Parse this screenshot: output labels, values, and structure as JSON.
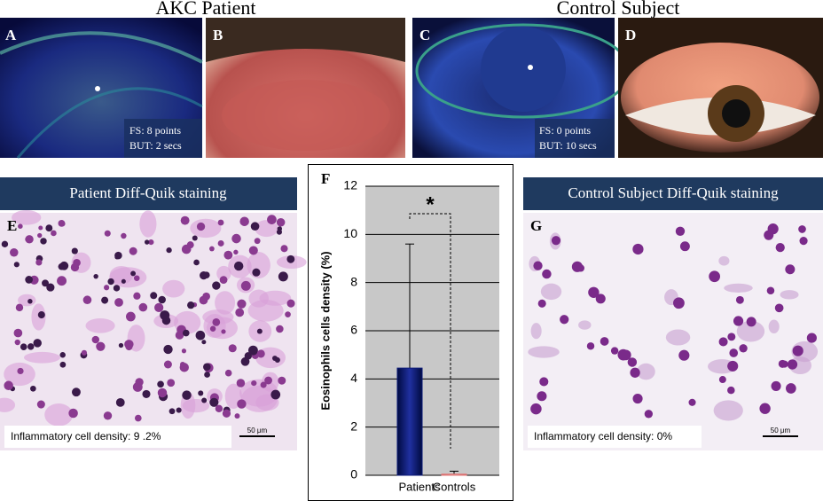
{
  "titles": {
    "patient": "AKC Patient",
    "control": "Control Subject"
  },
  "photos": [
    {
      "letter": "A",
      "lines": [
        "FS: 8 points",
        "BUT: 2 secs"
      ]
    },
    {
      "letter": "B"
    },
    {
      "letter": "C",
      "lines": [
        "FS: 0 points",
        "BUT: 10 secs"
      ]
    },
    {
      "letter": "D"
    }
  ],
  "smears": [
    {
      "header": "Patient Diff-Quik staining",
      "letter": "E",
      "caption": "Inflammatory cell density: 9 .2%",
      "scale": "50 μm"
    },
    {
      "header": "Control Subject Diff-Quik staining",
      "letter": "G",
      "caption": "Inflammatory cell density: 0%",
      "scale": "50 μm"
    }
  ],
  "chart_data": {
    "type": "bar",
    "panel": "F",
    "ylabel": "Eosinophils cells density (%)",
    "annotation": "*",
    "categories": [
      "Patients",
      "Controls"
    ],
    "values": [
      4.45,
      0.05
    ],
    "errors": [
      5.15,
      0.12
    ],
    "colors": [
      "#0c1a78",
      "#e07a7a"
    ],
    "ylim": [
      0,
      12
    ],
    "yticks": [
      0,
      2,
      4,
      6,
      8,
      10,
      12
    ],
    "grid": true
  }
}
